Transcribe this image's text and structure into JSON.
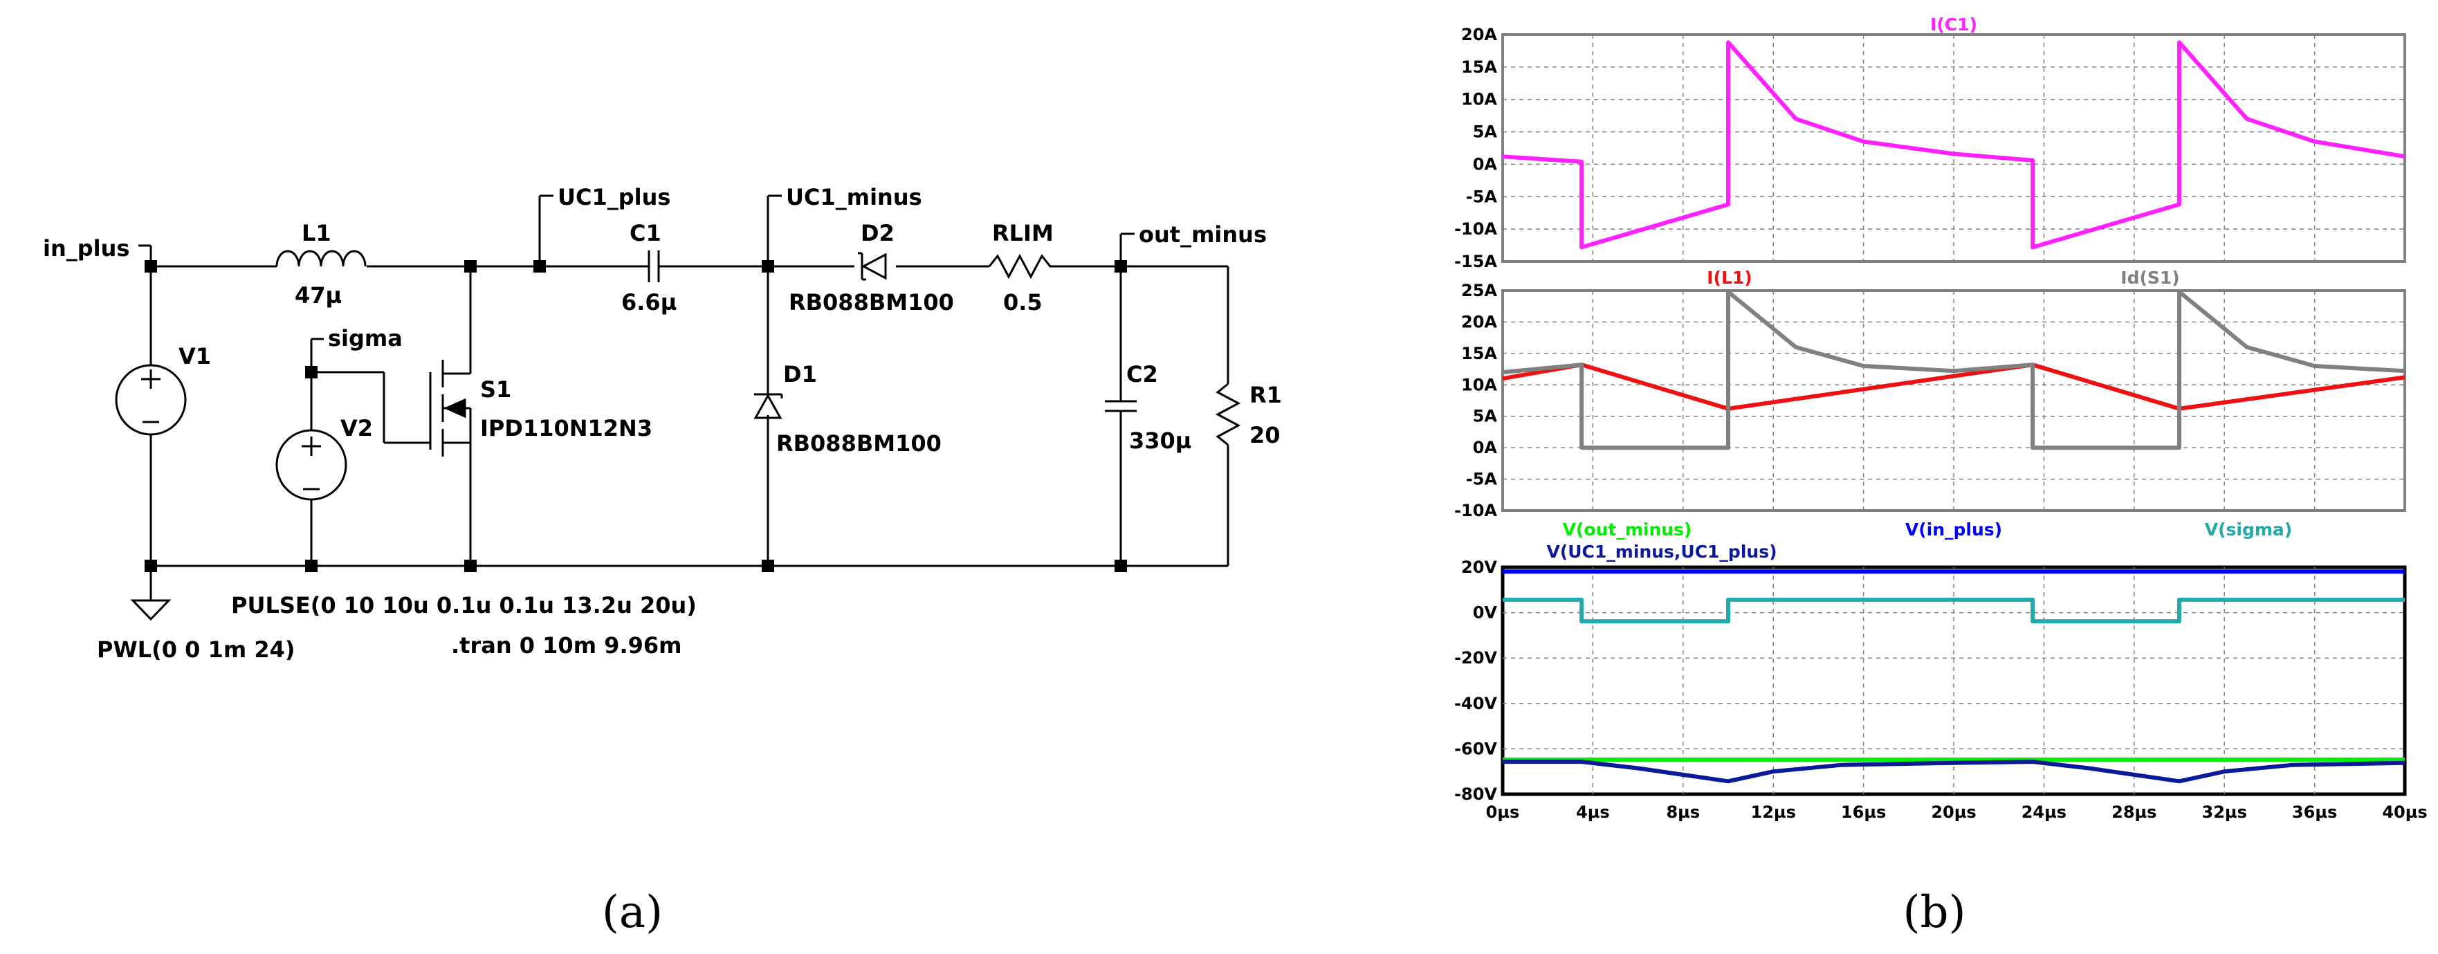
{
  "schematic": {
    "nets": {
      "in_plus": "in_plus",
      "uc1_plus": "UC1_plus",
      "uc1_minus": "UC1_minus",
      "out_minus": "out_minus",
      "sigma": "sigma"
    },
    "components": {
      "l1_name": "L1",
      "l1_value": "47µ",
      "c1_name": "C1",
      "c1_value": "6.6µ",
      "d2_name": "D2",
      "d2_value": "RB088BM100",
      "rlim_name": "RLIM",
      "rlim_value": "0.5",
      "v1_name": "V1",
      "v2_name": "V2",
      "s1_name": "S1",
      "s1_value": "IPD110N12N3",
      "d1_name": "D1",
      "d1_value": "RB088BM100",
      "c2_name": "C2",
      "c2_value": "330µ",
      "r1_name": "R1",
      "r1_value": "20"
    },
    "directives": {
      "pulse": "PULSE(0 10 10u 0.1u 0.1u 13.2u 20u)",
      "pwl": "PWL(0 0 1m 24)",
      "tran": ".tran 0 10m 9.96m"
    }
  },
  "captions": {
    "a": "(a)",
    "b": "(b)"
  },
  "chart_data": [
    {
      "type": "line",
      "ylim": [
        -15,
        20
      ],
      "yticks": [
        "20A",
        "15A",
        "10A",
        "5A",
        "0A",
        "-5A",
        "-10A",
        "-15A"
      ],
      "series": [
        {
          "name": "I(C1)",
          "color": "#ff22ff",
          "x": [
            0,
            3.5,
            3.5,
            10,
            10,
            13,
            16,
            20,
            23.5,
            23.5,
            30,
            30,
            33,
            36,
            40
          ],
          "y": [
            1.2,
            0.4,
            -12.8,
            -6.2,
            18.8,
            7,
            3.5,
            1.6,
            0.6,
            -12.8,
            -6.2,
            18.8,
            7,
            3.5,
            1.2
          ]
        }
      ]
    },
    {
      "type": "line",
      "ylim": [
        -10,
        25
      ],
      "yticks": [
        "25A",
        "20A",
        "15A",
        "10A",
        "5A",
        "0A",
        "-5A",
        "-10A"
      ],
      "series": [
        {
          "name": "I(L1)",
          "color": "#ee1111",
          "x": [
            0,
            3.5,
            10,
            23.5,
            30,
            40
          ],
          "y": [
            11,
            13.2,
            6.2,
            13.2,
            6.2,
            11.2
          ]
        },
        {
          "name": "Id(S1)",
          "color": "#808080",
          "x": [
            0,
            3.5,
            3.5,
            10,
            10,
            13,
            16,
            20,
            23.5,
            23.5,
            30,
            30,
            33,
            36,
            40
          ],
          "y": [
            12,
            13.2,
            0,
            0,
            24.8,
            16,
            13,
            12.2,
            13.2,
            0,
            0,
            24.8,
            16,
            13,
            12.2
          ]
        }
      ]
    },
    {
      "type": "line",
      "xlim": [
        0,
        40
      ],
      "ylim": [
        -80,
        25
      ],
      "yticks": [
        "20V",
        "0V",
        "-20V",
        "-40V",
        "-60V",
        "-80V"
      ],
      "xticks": [
        "0µs",
        "4µs",
        "8µs",
        "12µs",
        "16µs",
        "20µs",
        "24µs",
        "28µs",
        "32µs",
        "36µs",
        "40µs"
      ],
      "series": [
        {
          "name": "V(out_minus)",
          "color": "#00ee00",
          "x": [
            0,
            40
          ],
          "y": [
            -64,
            -64
          ]
        },
        {
          "name": "V(in_plus)",
          "color": "#0000ff",
          "x": [
            0,
            40
          ],
          "y": [
            23,
            23
          ]
        },
        {
          "name": "V(sigma)",
          "color": "#22aaaa",
          "x": [
            0,
            3.5,
            3.5,
            10,
            10,
            23.5,
            23.5,
            30,
            30,
            40
          ],
          "y": [
            10,
            10,
            0,
            0,
            10,
            10,
            0,
            0,
            10,
            10
          ]
        },
        {
          "name": "V(UC1_minus,UC1_plus)",
          "color": "#0a1a99",
          "x": [
            0,
            3.5,
            6,
            8,
            10,
            12,
            15,
            20,
            23.5,
            26,
            28,
            30,
            32,
            35,
            40
          ],
          "y": [
            -65,
            -65,
            -68,
            -71,
            -74,
            -69.5,
            -66.5,
            -65.5,
            -65,
            -68,
            -71,
            -74,
            -69.5,
            -66.5,
            -65.5
          ]
        }
      ]
    }
  ]
}
